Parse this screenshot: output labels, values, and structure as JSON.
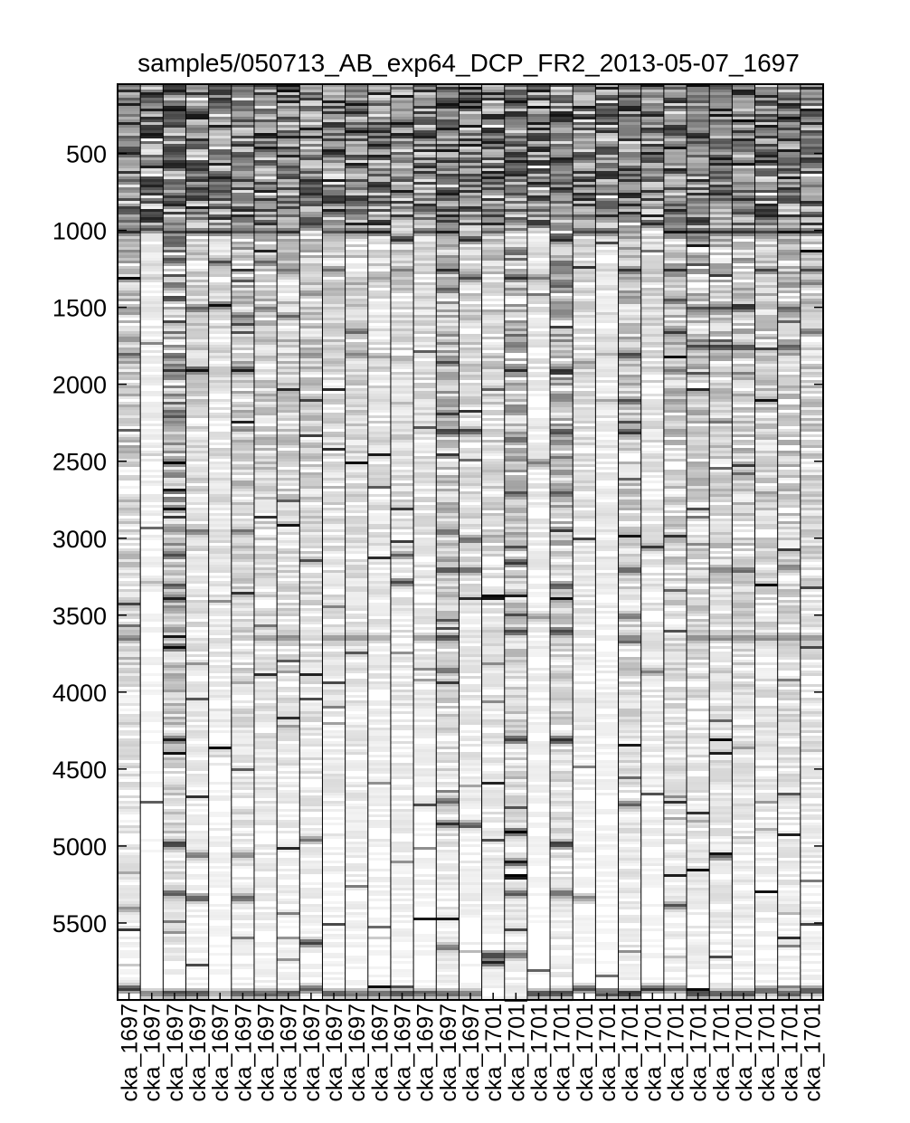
{
  "chart_data": {
    "type": "heatmap",
    "title": "sample5/050713_AB_exp64_DCP_FR2_2013-05-07_1697",
    "xlabel": "",
    "ylabel": "",
    "ylim": [
      6000,
      50
    ],
    "y_ticks": [
      500,
      1000,
      1500,
      2000,
      2500,
      3000,
      3500,
      4000,
      4500,
      5000,
      5500
    ],
    "colormap": "gray-reversed",
    "columns": [
      {
        "label": "cka_1697",
        "baseline": 0.35,
        "bands": [
          [
            1000,
            0.9
          ],
          [
            1500,
            0.6
          ],
          [
            1800,
            0.7
          ],
          [
            3640,
            0.7
          ],
          [
            5400,
            0.5
          ],
          [
            5920,
            1.0
          ]
        ]
      },
      {
        "label": "cka_1697",
        "baseline": 0.1,
        "bands": [
          [
            980,
            1.0
          ],
          [
            1300,
            0.3
          ],
          [
            3280,
            0.3
          ],
          [
            5950,
            0.6
          ]
        ]
      },
      {
        "label": "cka_1697",
        "baseline": 0.55,
        "bands": [
          [
            1000,
            0.9
          ],
          [
            1350,
            0.8
          ],
          [
            1900,
            0.9
          ],
          [
            2200,
            0.8
          ],
          [
            2500,
            0.9
          ],
          [
            2800,
            0.8
          ],
          [
            3100,
            0.9
          ],
          [
            3300,
            0.8
          ],
          [
            3700,
            1.0
          ],
          [
            4300,
            1.0
          ],
          [
            4980,
            1.0
          ],
          [
            5300,
            0.8
          ],
          [
            5950,
            0.9
          ]
        ]
      },
      {
        "label": "cka_1697",
        "baseline": 0.25,
        "bands": [
          [
            1000,
            0.9
          ],
          [
            1500,
            0.9
          ],
          [
            1900,
            1.0
          ],
          [
            2950,
            0.7
          ],
          [
            5050,
            0.7
          ],
          [
            5330,
            0.9
          ],
          [
            5950,
            0.9
          ]
        ]
      },
      {
        "label": "cka_1697",
        "baseline": 0.2,
        "bands": [
          [
            1000,
            1.0
          ],
          [
            1200,
            0.9
          ],
          [
            1480,
            1.0
          ],
          [
            5950,
            0.4
          ]
        ]
      },
      {
        "label": "cka_1697",
        "baseline": 0.35,
        "bands": [
          [
            1000,
            0.9
          ],
          [
            1550,
            0.8
          ],
          [
            1900,
            1.0
          ],
          [
            2950,
            0.7
          ],
          [
            5050,
            0.6
          ],
          [
            5330,
            0.9
          ],
          [
            5950,
            0.9
          ]
        ]
      },
      {
        "label": "cka_1697",
        "baseline": 0.3,
        "bands": [
          [
            1000,
            0.9
          ],
          [
            1200,
            0.7
          ],
          [
            1500,
            0.7
          ],
          [
            2350,
            0.5
          ],
          [
            3640,
            0.5
          ],
          [
            5950,
            0.9
          ]
        ]
      },
      {
        "label": "cka_1697",
        "baseline": 0.3,
        "bands": [
          [
            1000,
            0.9
          ],
          [
            1250,
            0.7
          ],
          [
            1550,
            0.7
          ],
          [
            2050,
            0.4
          ],
          [
            3640,
            0.6
          ],
          [
            5950,
            0.9
          ]
        ]
      },
      {
        "label": "cka_1697",
        "baseline": 0.3,
        "bands": [
          [
            950,
            0.8
          ],
          [
            1400,
            0.6
          ],
          [
            1800,
            0.6
          ],
          [
            4950,
            0.6
          ],
          [
            5620,
            1.0
          ],
          [
            5920,
            0.9
          ]
        ]
      },
      {
        "label": "cka_1697",
        "baseline": 0.25,
        "bands": [
          [
            1000,
            0.9
          ],
          [
            1250,
            0.7
          ],
          [
            3640,
            0.5
          ],
          [
            5950,
            0.8
          ]
        ]
      },
      {
        "label": "cka_1697",
        "baseline": 0.25,
        "bands": [
          [
            1000,
            0.9
          ],
          [
            1650,
            0.7
          ],
          [
            1800,
            0.7
          ],
          [
            3640,
            0.6
          ],
          [
            5950,
            0.8
          ]
        ]
      },
      {
        "label": "cka_1697",
        "baseline": 0.2,
        "bands": [
          [
            1000,
            1.0
          ],
          [
            1300,
            0.5
          ],
          [
            3640,
            0.5
          ],
          [
            5950,
            0.9
          ]
        ]
      },
      {
        "label": "cka_1697",
        "baseline": 0.25,
        "bands": [
          [
            1050,
            1.0
          ],
          [
            1250,
            0.6
          ],
          [
            3100,
            0.7
          ],
          [
            3280,
            0.9
          ],
          [
            5950,
            0.9
          ]
        ]
      },
      {
        "label": "cka_1697",
        "baseline": 0.2,
        "bands": [
          [
            1000,
            0.9
          ],
          [
            3640,
            0.5
          ],
          [
            5950,
            0.8
          ]
        ]
      },
      {
        "label": "cka_1697",
        "baseline": 0.4,
        "bands": [
          [
            1000,
            1.0
          ],
          [
            1250,
            0.9
          ],
          [
            1850,
            0.9
          ],
          [
            2300,
            1.0
          ],
          [
            2950,
            0.8
          ],
          [
            3200,
            0.9
          ],
          [
            3640,
            1.0
          ],
          [
            3850,
            0.8
          ],
          [
            4700,
            0.8
          ],
          [
            4850,
            0.9
          ],
          [
            5650,
            0.7
          ],
          [
            5950,
            0.9
          ]
        ]
      },
      {
        "label": "cka_1697",
        "baseline": 0.25,
        "bands": [
          [
            1050,
            1.0
          ],
          [
            1300,
            0.8
          ],
          [
            2300,
            0.9
          ],
          [
            3000,
            0.8
          ],
          [
            3200,
            0.8
          ],
          [
            4850,
            0.7
          ],
          [
            5950,
            0.7
          ]
        ]
      },
      {
        "label": "cka_1701",
        "baseline": 0.3,
        "bands": [
          [
            1000,
            0.7
          ],
          [
            5700,
            1.0
          ],
          [
            5750,
            1.0
          ]
        ]
      },
      {
        "label": "cka_1701",
        "baseline": 0.45,
        "bands": [
          [
            1300,
            1.0
          ],
          [
            1900,
            0.9
          ],
          [
            2350,
            0.9
          ],
          [
            2700,
            0.9
          ],
          [
            3150,
            1.0
          ],
          [
            3600,
            0.9
          ],
          [
            4300,
            1.0
          ],
          [
            4900,
            1.0
          ],
          [
            5100,
            0.9
          ],
          [
            5300,
            0.9
          ],
          [
            5700,
            0.8
          ]
        ]
      },
      {
        "label": "cka_1701",
        "baseline": 0.15,
        "bands": [
          [
            950,
            1.0
          ],
          [
            1300,
            0.6
          ],
          [
            2500,
            0.6
          ],
          [
            3500,
            0.5
          ],
          [
            5950,
            0.9
          ]
        ]
      },
      {
        "label": "cka_1701",
        "baseline": 0.45,
        "bands": [
          [
            1050,
            1.0
          ],
          [
            1350,
            0.9
          ],
          [
            1900,
            0.9
          ],
          [
            2300,
            0.9
          ],
          [
            2700,
            0.9
          ],
          [
            3300,
            0.9
          ],
          [
            3600,
            1.0
          ],
          [
            4300,
            1.0
          ],
          [
            4980,
            1.0
          ],
          [
            5300,
            0.8
          ],
          [
            5950,
            0.9
          ]
        ]
      },
      {
        "label": "cka_1701",
        "baseline": 0.2,
        "bands": [
          [
            1000,
            0.9
          ],
          [
            1850,
            0.5
          ],
          [
            5330,
            0.6
          ],
          [
            5920,
            0.9
          ]
        ]
      },
      {
        "label": "cka_1701",
        "baseline": 0.15,
        "bands": [
          [
            1000,
            0.9
          ],
          [
            5950,
            0.9
          ]
        ]
      },
      {
        "label": "cka_1701",
        "baseline": 0.35,
        "bands": [
          [
            1250,
            0.9
          ],
          [
            1800,
            1.0
          ],
          [
            2100,
            0.8
          ],
          [
            2300,
            1.0
          ],
          [
            3200,
            0.9
          ],
          [
            3500,
            0.7
          ],
          [
            3640,
            0.7
          ],
          [
            4720,
            0.7
          ],
          [
            5950,
            1.0
          ]
        ]
      },
      {
        "label": "cka_1701",
        "baseline": 0.2,
        "bands": [
          [
            950,
            1.0
          ],
          [
            3050,
            0.7
          ],
          [
            3860,
            0.6
          ],
          [
            5920,
            0.9
          ]
        ]
      },
      {
        "label": "cka_1701",
        "baseline": 0.35,
        "bands": [
          [
            1000,
            1.0
          ],
          [
            1250,
            0.9
          ],
          [
            1450,
            0.9
          ],
          [
            1650,
            0.9
          ],
          [
            1900,
            0.6
          ],
          [
            5380,
            0.8
          ],
          [
            5920,
            0.8
          ]
        ]
      },
      {
        "label": "cka_1701",
        "baseline": 0.35,
        "bands": [
          [
            1000,
            1.0
          ],
          [
            1500,
            0.9
          ],
          [
            1750,
            0.9
          ],
          [
            2300,
            0.4
          ],
          [
            3640,
            0.6
          ],
          [
            5950,
            0.9
          ]
        ]
      },
      {
        "label": "cka_1701",
        "baseline": 0.35,
        "bands": [
          [
            1000,
            1.0
          ],
          [
            1500,
            0.9
          ],
          [
            1750,
            0.9
          ],
          [
            3200,
            0.7
          ],
          [
            3640,
            0.6
          ],
          [
            5950,
            0.9
          ]
        ]
      },
      {
        "label": "cka_1701",
        "baseline": 0.35,
        "bands": [
          [
            1000,
            1.0
          ],
          [
            1500,
            0.9
          ],
          [
            1750,
            0.9
          ],
          [
            3200,
            0.7
          ],
          [
            3640,
            0.6
          ],
          [
            5950,
            0.9
          ]
        ]
      },
      {
        "label": "cka_1701",
        "baseline": 0.3,
        "bands": [
          [
            1000,
            1.0
          ],
          [
            1250,
            0.8
          ],
          [
            3640,
            0.6
          ],
          [
            5930,
            0.9
          ]
        ]
      },
      {
        "label": "cka_1701",
        "baseline": 0.35,
        "bands": [
          [
            1000,
            1.0
          ],
          [
            1500,
            0.9
          ],
          [
            1750,
            0.9
          ],
          [
            3180,
            0.7
          ],
          [
            3640,
            0.6
          ],
          [
            5950,
            0.9
          ]
        ]
      },
      {
        "label": "cka_1701",
        "baseline": 0.3,
        "bands": [
          [
            1000,
            1.0
          ],
          [
            1250,
            0.8
          ],
          [
            1650,
            0.7
          ],
          [
            3640,
            0.6
          ],
          [
            5930,
            0.9
          ]
        ]
      }
    ]
  }
}
